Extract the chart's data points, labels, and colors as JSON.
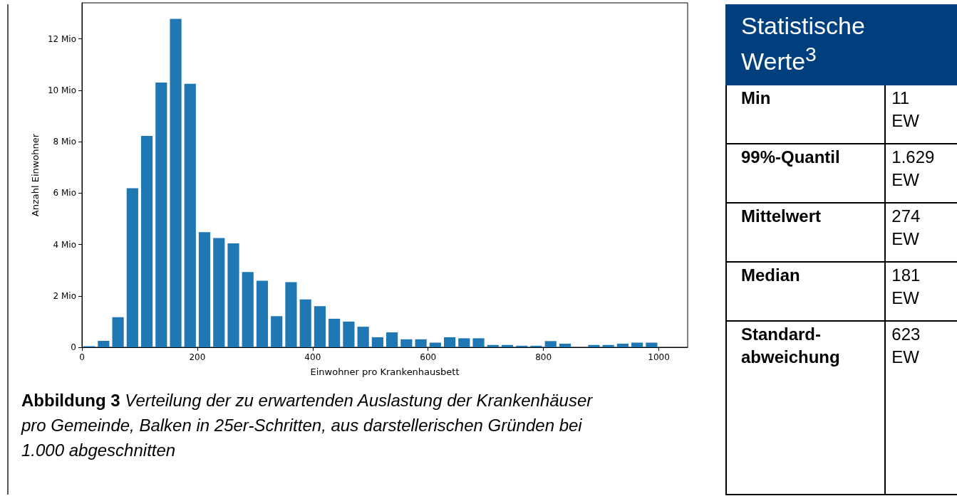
{
  "chart_data": [
    {
      "type": "histogram",
      "xlabel": "Einwohner pro Krankenhausbett",
      "ylabel": "Anzahl Einwohner",
      "bins": [
        0,
        25,
        50,
        75,
        100,
        125,
        150,
        175,
        200,
        225,
        250,
        275,
        300,
        325,
        350,
        375,
        400,
        425,
        450,
        475,
        500,
        525,
        550,
        575,
        600,
        625,
        650,
        675,
        700,
        725,
        750,
        775,
        800,
        825,
        850,
        875,
        900,
        925,
        950,
        975,
        1000
      ],
      "values": [
        0.04,
        0.25,
        1.17,
        6.19,
        8.22,
        10.3,
        12.78,
        10.25,
        4.48,
        4.25,
        4.04,
        2.93,
        2.59,
        1.21,
        2.53,
        1.86,
        1.6,
        1.11,
        1.0,
        0.8,
        0.39,
        0.58,
        0.31,
        0.31,
        0.18,
        0.39,
        0.35,
        0.35,
        0.09,
        0.09,
        0.06,
        0.06,
        0.24,
        0.14,
        0,
        0.09,
        0.09,
        0.14,
        0.18,
        0.18
      ],
      "color": "#1f77b4",
      "xlim": [
        0,
        1050
      ],
      "xticks": [
        0,
        200,
        400,
        600,
        800,
        1000
      ],
      "ylim": [
        0,
        13.4
      ],
      "yticks": [
        {
          "value": 0,
          "label": "0"
        },
        {
          "value": 2,
          "label": "2 Mio"
        },
        {
          "value": 4,
          "label": "4 Mio"
        },
        {
          "value": 6,
          "label": "6 Mio"
        },
        {
          "value": 8,
          "label": "8 Mio"
        },
        {
          "value": 10,
          "label": "10 Mio"
        },
        {
          "value": 12,
          "label": "12 Mio"
        }
      ],
      "grid": false,
      "annotations": [
        "Abbildung 3",
        "Verteilung der zu erwartenden Auslastung der Krankenhäuser pro Gemeinde, Balken in 25er-Schritten, aus darstellerischen Gründen bei 1.000 abgeschnitten"
      ]
    },
    {
      "type": "other",
      "title": "Statistische Werte$^{3}$",
      "annotations": [
        "Min",
        "11 EW",
        "99%-Quantil",
        "1.629 EW",
        "Mittelwert",
        "274 EW",
        "Median",
        "181 EW",
        "Standard-abweichung",
        "623 EW"
      ]
    }
  ]
}
